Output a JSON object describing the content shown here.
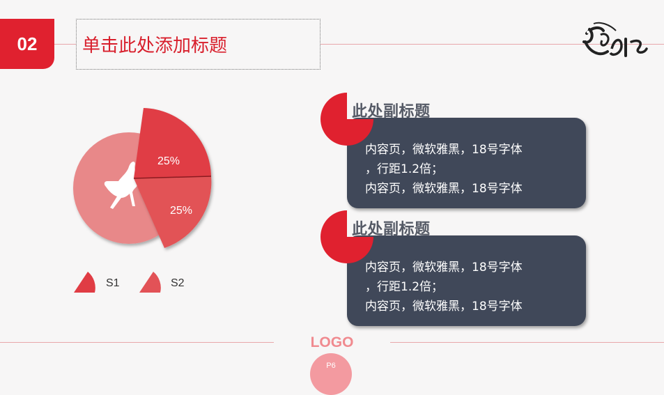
{
  "header": {
    "section_number": "02",
    "title": "单击此处添加标题"
  },
  "chart_data": {
    "type": "pie",
    "categories": [
      "S1",
      "S2"
    ],
    "values": [
      25,
      25
    ],
    "labels": [
      "25%",
      "25%"
    ],
    "legend_position": "bottom",
    "colors": {
      "base": "#e88889",
      "slice1": "#e03c44",
      "slice2": "#e25257"
    }
  },
  "callouts": [
    {
      "subtitle": "此处副标题",
      "lines": [
        "内容页，微软雅黑，18号字体",
        "，行距1.2倍；",
        "内容页，微软雅黑，18号字体"
      ]
    },
    {
      "subtitle": "此处副标题",
      "lines": [
        "内容页，微软雅黑，18号字体",
        "，行距1.2倍；",
        "内容页，微软雅黑，18号字体"
      ]
    }
  ],
  "footer": {
    "logo": "LOGO",
    "page": "P6"
  },
  "colors": {
    "accent": "#e0212f",
    "card": "#404859",
    "line": "#e8a6aa"
  }
}
